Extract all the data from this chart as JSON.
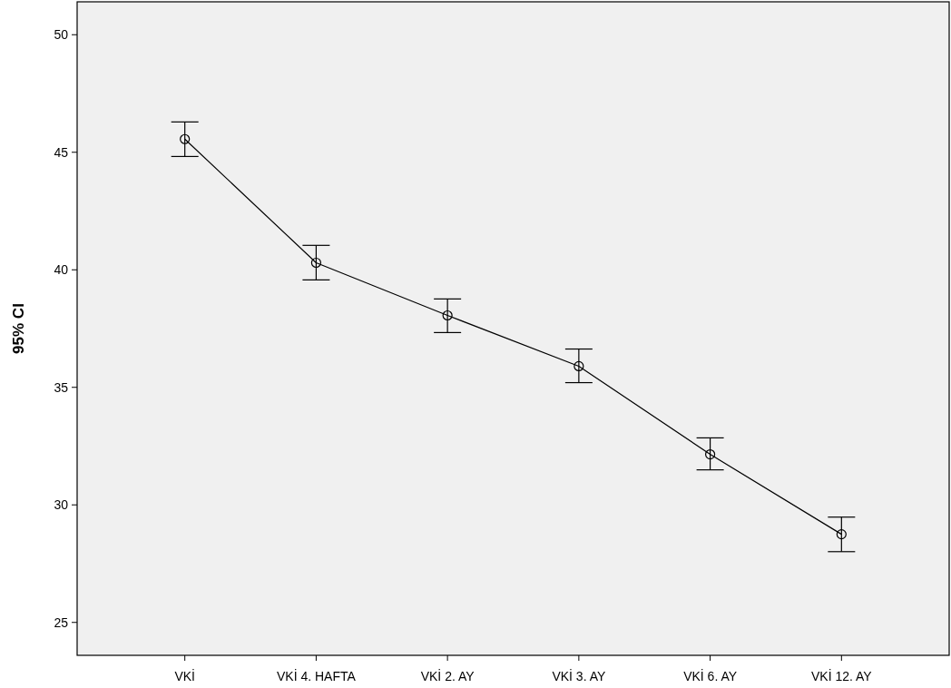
{
  "chart_data": {
    "type": "line",
    "ylabel": "95% CI",
    "categories": [
      "VKİ",
      "VKİ 4. HAFTA",
      "VKİ 2. AY",
      "VKİ 3. AY",
      "VKİ 6. AY",
      "VKİ 12. AY"
    ],
    "series": [
      {
        "color": "#000000",
        "values": [
          45.56,
          40.3,
          38.06,
          35.9,
          32.15,
          28.75
        ],
        "errors": [
          [
            44.82,
            46.29
          ],
          [
            39.57,
            41.04
          ],
          [
            37.33,
            38.76
          ],
          [
            35.2,
            36.63
          ],
          [
            31.49,
            32.85
          ],
          [
            28.01,
            29.48
          ]
        ]
      }
    ],
    "ylim": [
      23.6,
      51.4
    ],
    "yticks": [
      25,
      30,
      35,
      40,
      45,
      50
    ],
    "marker": "circle",
    "grid": false
  }
}
